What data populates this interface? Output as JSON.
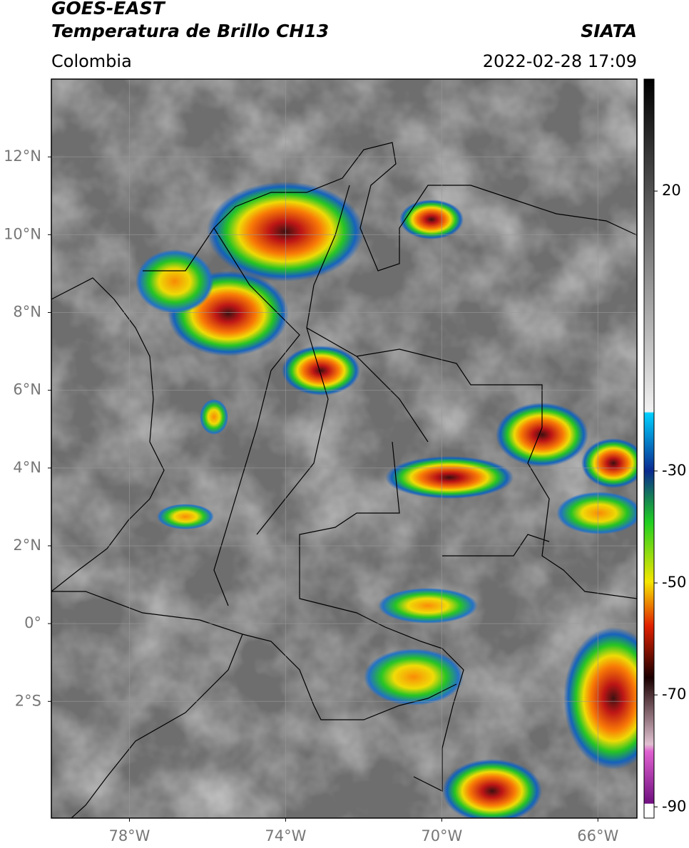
{
  "header": {
    "title_line1": "GOES-EAST",
    "title_line2": "Temperatura de Brillo CH13",
    "region": "Colombia",
    "source": "SIATA",
    "datetime": "2022-02-28 17:09"
  },
  "map": {
    "xlim": [
      -80,
      -65
    ],
    "ylim": [
      -5,
      14
    ],
    "xticks": [
      {
        "value": -78,
        "label": "78°W"
      },
      {
        "value": -74,
        "label": "74°W"
      },
      {
        "value": -70,
        "label": "70°W"
      },
      {
        "value": -66,
        "label": "66°W"
      }
    ],
    "yticks": [
      {
        "value": 12,
        "label": "12°N"
      },
      {
        "value": 10,
        "label": "10°N"
      },
      {
        "value": 8,
        "label": "8°N"
      },
      {
        "value": 6,
        "label": "6°N"
      },
      {
        "value": 4,
        "label": "4°N"
      },
      {
        "value": 2,
        "label": "2°N"
      },
      {
        "value": 0,
        "label": "0°"
      },
      {
        "value": -2,
        "label": "2°S"
      }
    ],
    "grid": true
  },
  "colorbar": {
    "clim": [
      -92,
      40
    ],
    "ticks": [
      20,
      -30,
      -50,
      -70,
      -90
    ]
  }
}
